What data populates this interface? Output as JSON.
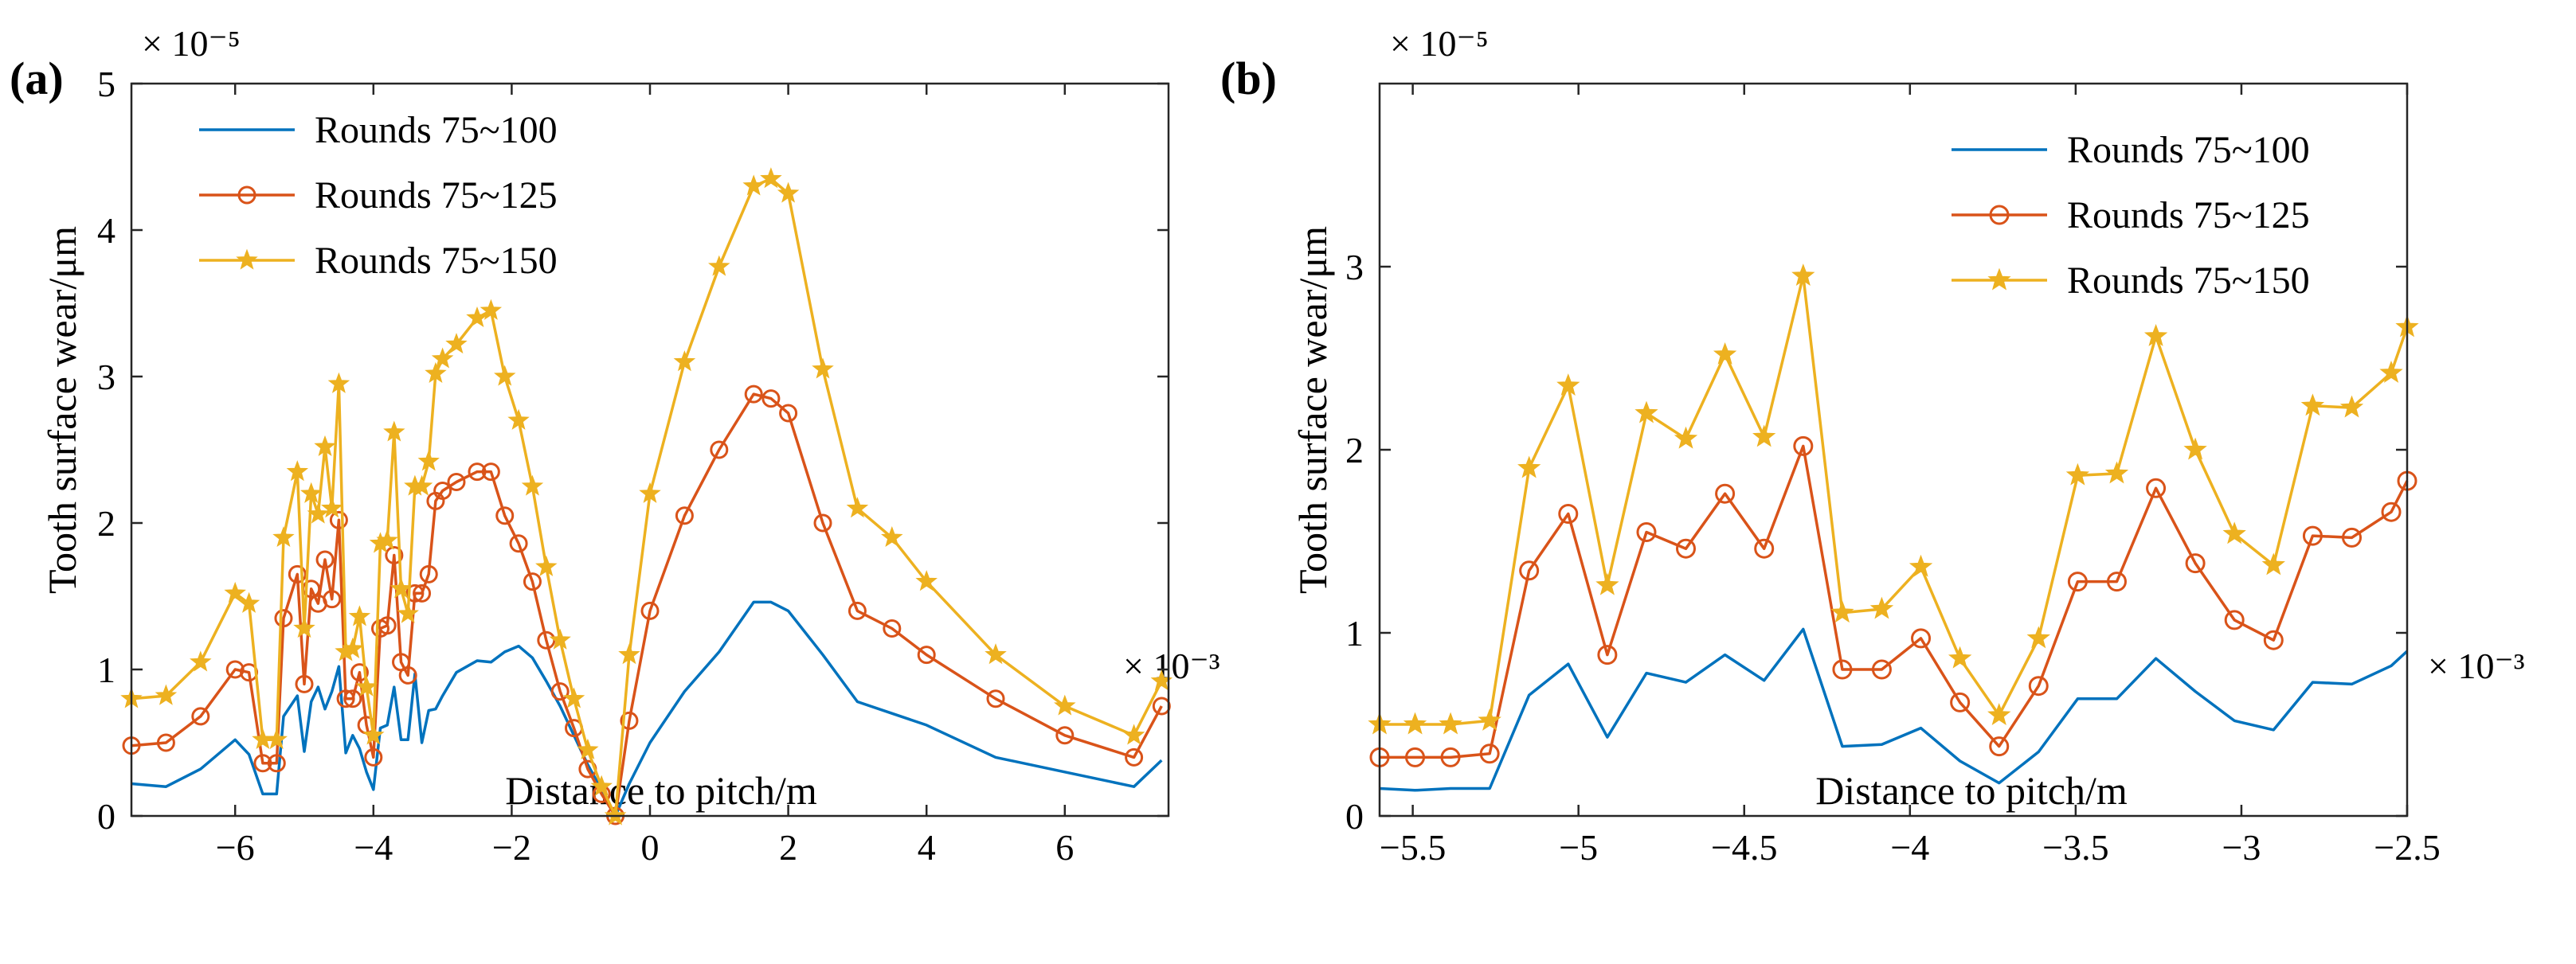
{
  "figure": {
    "panels": [
      "(a)",
      "(b)"
    ]
  },
  "chart_data": [
    {
      "type": "line",
      "panel": "(a)",
      "xlabel": "Distance to pitch/m",
      "ylabel": "Tooth surface wear/μm",
      "x_multiplier": "× 10⁻³",
      "y_multiplier": "× 10⁻⁵",
      "xlim": [
        -7.5,
        7.5
      ],
      "ylim": [
        0,
        5
      ],
      "xticks": [
        -6,
        -4,
        -2,
        0,
        2,
        4,
        6
      ],
      "xtick_labels": [
        "−6",
        "−4",
        "−2",
        "0",
        "2",
        "4",
        "6"
      ],
      "yticks": [
        0,
        1,
        2,
        3,
        4,
        5
      ],
      "ytick_labels": [
        "0",
        "1",
        "2",
        "3",
        "4",
        "5"
      ],
      "legend_position": "top-left",
      "series": [
        {
          "name": "Rounds 75~100",
          "color": "#0072BD",
          "marker": "none",
          "x": [
            -7.5,
            -7.0,
            -6.5,
            -6.0,
            -5.8,
            -5.6,
            -5.4,
            -5.3,
            -5.1,
            -5.0,
            -4.9,
            -4.8,
            -4.7,
            -4.6,
            -4.5,
            -4.4,
            -4.3,
            -4.2,
            -4.1,
            -4.0,
            -3.9,
            -3.8,
            -3.7,
            -3.6,
            -3.5,
            -3.4,
            -3.3,
            -3.2,
            -3.1,
            -3.0,
            -2.8,
            -2.5,
            -2.3,
            -2.1,
            -1.9,
            -1.7,
            -1.5,
            -1.3,
            -1.1,
            -0.9,
            -0.7,
            -0.5,
            -0.3,
            0.0,
            0.5,
            1.0,
            1.5,
            1.75,
            2.0,
            2.5,
            3.0,
            3.5,
            4.0,
            5.0,
            6.0,
            7.0,
            7.4
          ],
          "values": [
            0.22,
            0.2,
            0.32,
            0.52,
            0.42,
            0.15,
            0.15,
            0.68,
            0.82,
            0.44,
            0.78,
            0.88,
            0.73,
            0.85,
            1.02,
            0.43,
            0.55,
            0.46,
            0.3,
            0.18,
            0.6,
            0.62,
            0.88,
            0.52,
            0.52,
            0.97,
            0.5,
            0.72,
            0.73,
            0.82,
            0.98,
            1.06,
            1.05,
            1.12,
            1.16,
            1.08,
            0.92,
            0.75,
            0.55,
            0.35,
            0.18,
            0.0,
            0.22,
            0.5,
            0.85,
            1.12,
            1.46,
            1.46,
            1.4,
            1.1,
            0.78,
            0.7,
            0.62,
            0.4,
            0.3,
            0.2,
            0.38
          ]
        },
        {
          "name": "Rounds 75~125",
          "color": "#D95319",
          "marker": "circle",
          "x": [
            -7.5,
            -7.0,
            -6.5,
            -6.0,
            -5.8,
            -5.6,
            -5.4,
            -5.3,
            -5.1,
            -5.0,
            -4.9,
            -4.8,
            -4.7,
            -4.6,
            -4.5,
            -4.4,
            -4.3,
            -4.2,
            -4.1,
            -4.0,
            -3.9,
            -3.8,
            -3.7,
            -3.6,
            -3.5,
            -3.4,
            -3.3,
            -3.2,
            -3.1,
            -3.0,
            -2.8,
            -2.5,
            -2.3,
            -2.1,
            -1.9,
            -1.7,
            -1.5,
            -1.3,
            -1.1,
            -0.9,
            -0.7,
            -0.5,
            -0.3,
            0.0,
            0.5,
            1.0,
            1.5,
            1.75,
            2.0,
            2.5,
            3.0,
            3.5,
            4.0,
            5.0,
            6.0,
            7.0,
            7.4
          ],
          "values": [
            0.48,
            0.5,
            0.68,
            1.0,
            0.98,
            0.36,
            0.36,
            1.35,
            1.65,
            0.9,
            1.55,
            1.45,
            1.75,
            1.48,
            2.02,
            0.8,
            0.8,
            0.98,
            0.62,
            0.4,
            1.28,
            1.3,
            1.78,
            1.05,
            0.96,
            1.52,
            1.52,
            1.65,
            2.15,
            2.22,
            2.28,
            2.35,
            2.35,
            2.05,
            1.86,
            1.6,
            1.2,
            0.85,
            0.6,
            0.32,
            0.15,
            0.0,
            0.65,
            1.4,
            2.05,
            2.5,
            2.88,
            2.85,
            2.75,
            2.0,
            1.4,
            1.28,
            1.1,
            0.8,
            0.55,
            0.4,
            0.75
          ]
        },
        {
          "name": "Rounds 75~150",
          "color": "#EDB120",
          "marker": "star",
          "x": [
            -7.5,
            -7.0,
            -6.5,
            -6.0,
            -5.8,
            -5.6,
            -5.4,
            -5.3,
            -5.1,
            -5.0,
            -4.9,
            -4.8,
            -4.7,
            -4.6,
            -4.5,
            -4.4,
            -4.3,
            -4.2,
            -4.1,
            -4.0,
            -3.9,
            -3.8,
            -3.7,
            -3.6,
            -3.5,
            -3.4,
            -3.3,
            -3.2,
            -3.1,
            -3.0,
            -2.8,
            -2.5,
            -2.3,
            -2.1,
            -1.9,
            -1.7,
            -1.5,
            -1.3,
            -1.1,
            -0.9,
            -0.7,
            -0.5,
            -0.3,
            0.0,
            0.5,
            1.0,
            1.5,
            1.75,
            2.0,
            2.5,
            3.0,
            3.5,
            4.0,
            5.0,
            6.0,
            7.0,
            7.4
          ],
          "values": [
            0.8,
            0.82,
            1.05,
            1.52,
            1.45,
            0.52,
            0.52,
            1.9,
            2.35,
            1.28,
            2.2,
            2.06,
            2.52,
            2.1,
            2.95,
            1.12,
            1.14,
            1.36,
            0.88,
            0.55,
            1.86,
            1.88,
            2.62,
            1.55,
            1.38,
            2.25,
            2.25,
            2.42,
            3.02,
            3.12,
            3.22,
            3.4,
            3.45,
            3.0,
            2.7,
            2.25,
            1.7,
            1.2,
            0.8,
            0.45,
            0.2,
            0.0,
            1.1,
            2.2,
            3.1,
            3.75,
            4.3,
            4.35,
            4.25,
            3.05,
            2.1,
            1.9,
            1.6,
            1.1,
            0.75,
            0.55,
            0.92
          ]
        }
      ]
    },
    {
      "type": "line",
      "panel": "(b)",
      "xlabel": "Distance to pitch/m",
      "ylabel": "Tooth surface wear/μm",
      "x_multiplier": "× 10⁻³",
      "y_multiplier": "× 10⁻⁵",
      "xlim": [
        -5.6,
        -2.5
      ],
      "ylim": [
        0,
        4
      ],
      "xticks": [
        -5.5,
        -5.0,
        -4.5,
        -4.0,
        -3.5,
        -3.0,
        -2.5
      ],
      "xtick_labels": [
        "−5.5",
        "−5",
        "−4.5",
        "−4",
        "−3.5",
        "−3",
        "−2.5"
      ],
      "yticks": [
        0,
        1,
        2,
        3
      ],
      "ytick_labels": [
        "0",
        "1",
        "2",
        "3"
      ],
      "legend_position": "top-right",
      "series": [
        {
          "name": "Rounds 75~100",
          "color": "#0072BD",
          "marker": "none",
          "x": [
            -5.6,
            -5.493,
            -5.386,
            -5.268,
            -5.149,
            -5.031,
            -4.913,
            -4.795,
            -4.676,
            -4.558,
            -4.44,
            -4.322,
            -4.204,
            -4.085,
            -3.967,
            -3.849,
            -3.731,
            -3.612,
            -3.494,
            -3.376,
            -3.258,
            -3.139,
            -3.021,
            -2.903,
            -2.785,
            -2.667,
            -2.548,
            -2.5
          ],
          "values": [
            0.15,
            0.14,
            0.15,
            0.15,
            0.66,
            0.83,
            0.43,
            0.78,
            0.73,
            0.88,
            0.74,
            1.02,
            0.38,
            0.39,
            0.48,
            0.3,
            0.18,
            0.35,
            0.64,
            0.64,
            0.86,
            0.68,
            0.52,
            0.47,
            0.73,
            0.72,
            0.82,
            0.9
          ]
        },
        {
          "name": "Rounds 75~125",
          "color": "#D95319",
          "marker": "circle",
          "x": [
            -5.6,
            -5.493,
            -5.386,
            -5.268,
            -5.149,
            -5.031,
            -4.913,
            -4.795,
            -4.676,
            -4.558,
            -4.44,
            -4.322,
            -4.204,
            -4.085,
            -3.967,
            -3.849,
            -3.731,
            -3.612,
            -3.494,
            -3.376,
            -3.258,
            -3.139,
            -3.021,
            -2.903,
            -2.785,
            -2.667,
            -2.548,
            -2.5
          ],
          "values": [
            0.32,
            0.32,
            0.32,
            0.34,
            1.34,
            1.65,
            0.88,
            1.55,
            1.46,
            1.76,
            1.46,
            2.02,
            0.8,
            0.8,
            0.97,
            0.62,
            0.38,
            0.71,
            1.28,
            1.28,
            1.79,
            1.38,
            1.07,
            0.96,
            1.53,
            1.52,
            1.66,
            1.83
          ]
        },
        {
          "name": "Rounds 75~150",
          "color": "#EDB120",
          "marker": "star",
          "x": [
            -5.6,
            -5.493,
            -5.386,
            -5.268,
            -5.149,
            -5.031,
            -4.913,
            -4.795,
            -4.676,
            -4.558,
            -4.44,
            -4.322,
            -4.204,
            -4.085,
            -3.967,
            -3.849,
            -3.731,
            -3.612,
            -3.494,
            -3.376,
            -3.258,
            -3.139,
            -3.021,
            -2.903,
            -2.785,
            -2.667,
            -2.548,
            -2.5
          ],
          "values": [
            0.5,
            0.5,
            0.5,
            0.52,
            1.9,
            2.35,
            1.26,
            2.2,
            2.06,
            2.52,
            2.07,
            2.95,
            1.11,
            1.13,
            1.36,
            0.86,
            0.55,
            0.97,
            1.86,
            1.87,
            2.62,
            2.0,
            1.54,
            1.37,
            2.24,
            2.23,
            2.42,
            2.67
          ]
        }
      ]
    }
  ]
}
